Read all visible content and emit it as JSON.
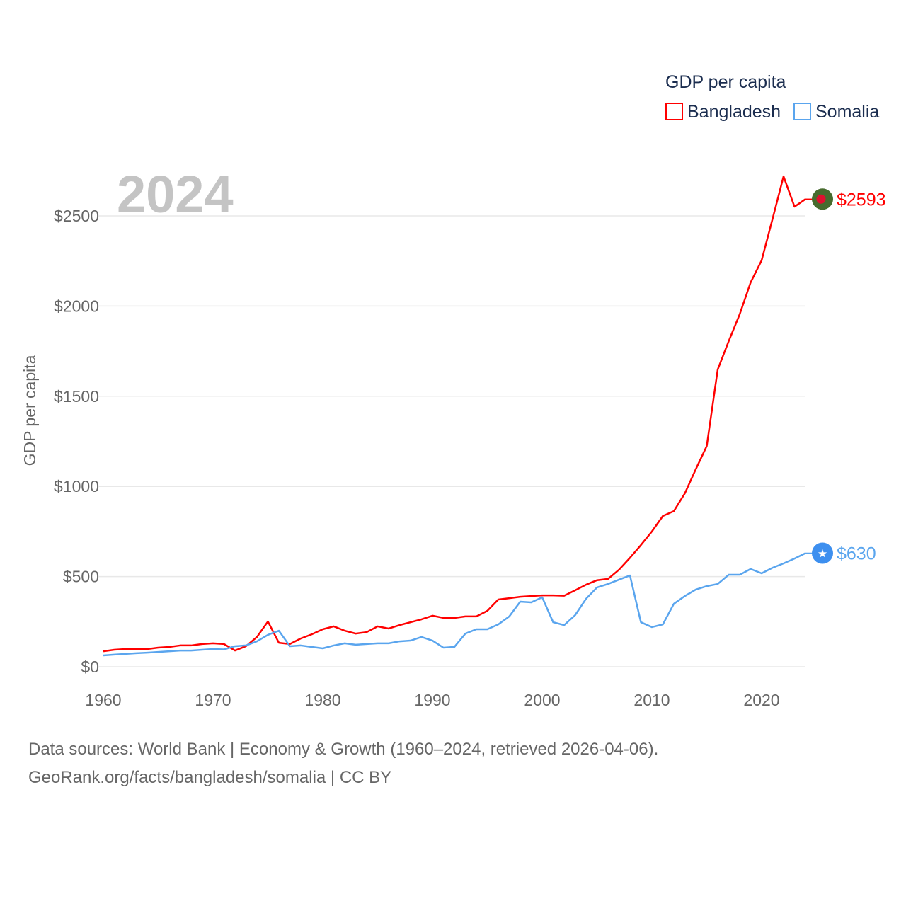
{
  "chart_data": {
    "type": "line",
    "title": "GDP per capita",
    "ylabel": "GDP per capita",
    "xlabel": "",
    "year_label": "2024",
    "xlim": [
      1960,
      2024
    ],
    "ylim": [
      0,
      2500
    ],
    "x_ticks": [
      "1960",
      "1970",
      "1980",
      "1990",
      "2000",
      "2010",
      "2020"
    ],
    "y_ticks": [
      "$0",
      "$500",
      "$1000",
      "$1500",
      "$2000",
      "$2500"
    ],
    "y_tick_values": [
      0,
      500,
      1000,
      1500,
      2000,
      2500
    ],
    "x_tick_values": [
      1960,
      1970,
      1980,
      1990,
      2000,
      2010,
      2020
    ],
    "grid": true,
    "legend_position": "top-right",
    "start_year": 1960,
    "series": [
      {
        "name": "Bangladesh",
        "color": "#ff0000",
        "end_label": "$2593",
        "marker": "bangladesh-flag",
        "values": [
          86,
          94,
          98,
          99,
          98,
          106,
          110,
          118,
          118,
          126,
          130,
          126,
          90,
          114,
          165,
          251,
          133,
          126,
          157,
          180,
          208,
          224,
          200,
          184,
          192,
          224,
          212,
          231,
          247,
          263,
          283,
          271,
          271,
          279,
          279,
          310,
          373,
          380,
          388,
          392,
          396,
          396,
          394,
          424,
          455,
          480,
          487,
          538,
          604,
          675,
          750,
          836,
          863,
          961,
          1095,
          1224,
          1648,
          1805,
          1954,
          2131,
          2253,
          2484,
          2719,
          2551,
          2593
        ]
      },
      {
        "name": "Somalia",
        "color": "#5aa5ee",
        "end_label": "$630",
        "marker": "somalia-flag",
        "values": [
          63,
          67,
          71,
          75,
          78,
          82,
          86,
          90,
          90,
          94,
          98,
          96,
          114,
          118,
          141,
          177,
          200,
          114,
          118,
          110,
          102,
          118,
          130,
          122,
          126,
          130,
          130,
          141,
          145,
          165,
          145,
          106,
          110,
          184,
          208,
          208,
          235,
          279,
          361,
          357,
          385,
          247,
          231,
          286,
          377,
          440,
          459,
          483,
          506,
          247,
          220,
          235,
          349,
          392,
          428,
          447,
          459,
          510,
          510,
          542,
          518,
          549,
          573,
          600,
          630
        ]
      }
    ]
  },
  "footer": {
    "line1": "Data sources: World Bank | Economy & Growth (1960–2024, retrieved 2026-04-06).",
    "line2": "GeoRank.org/facts/bangladesh/somalia | CC BY"
  }
}
